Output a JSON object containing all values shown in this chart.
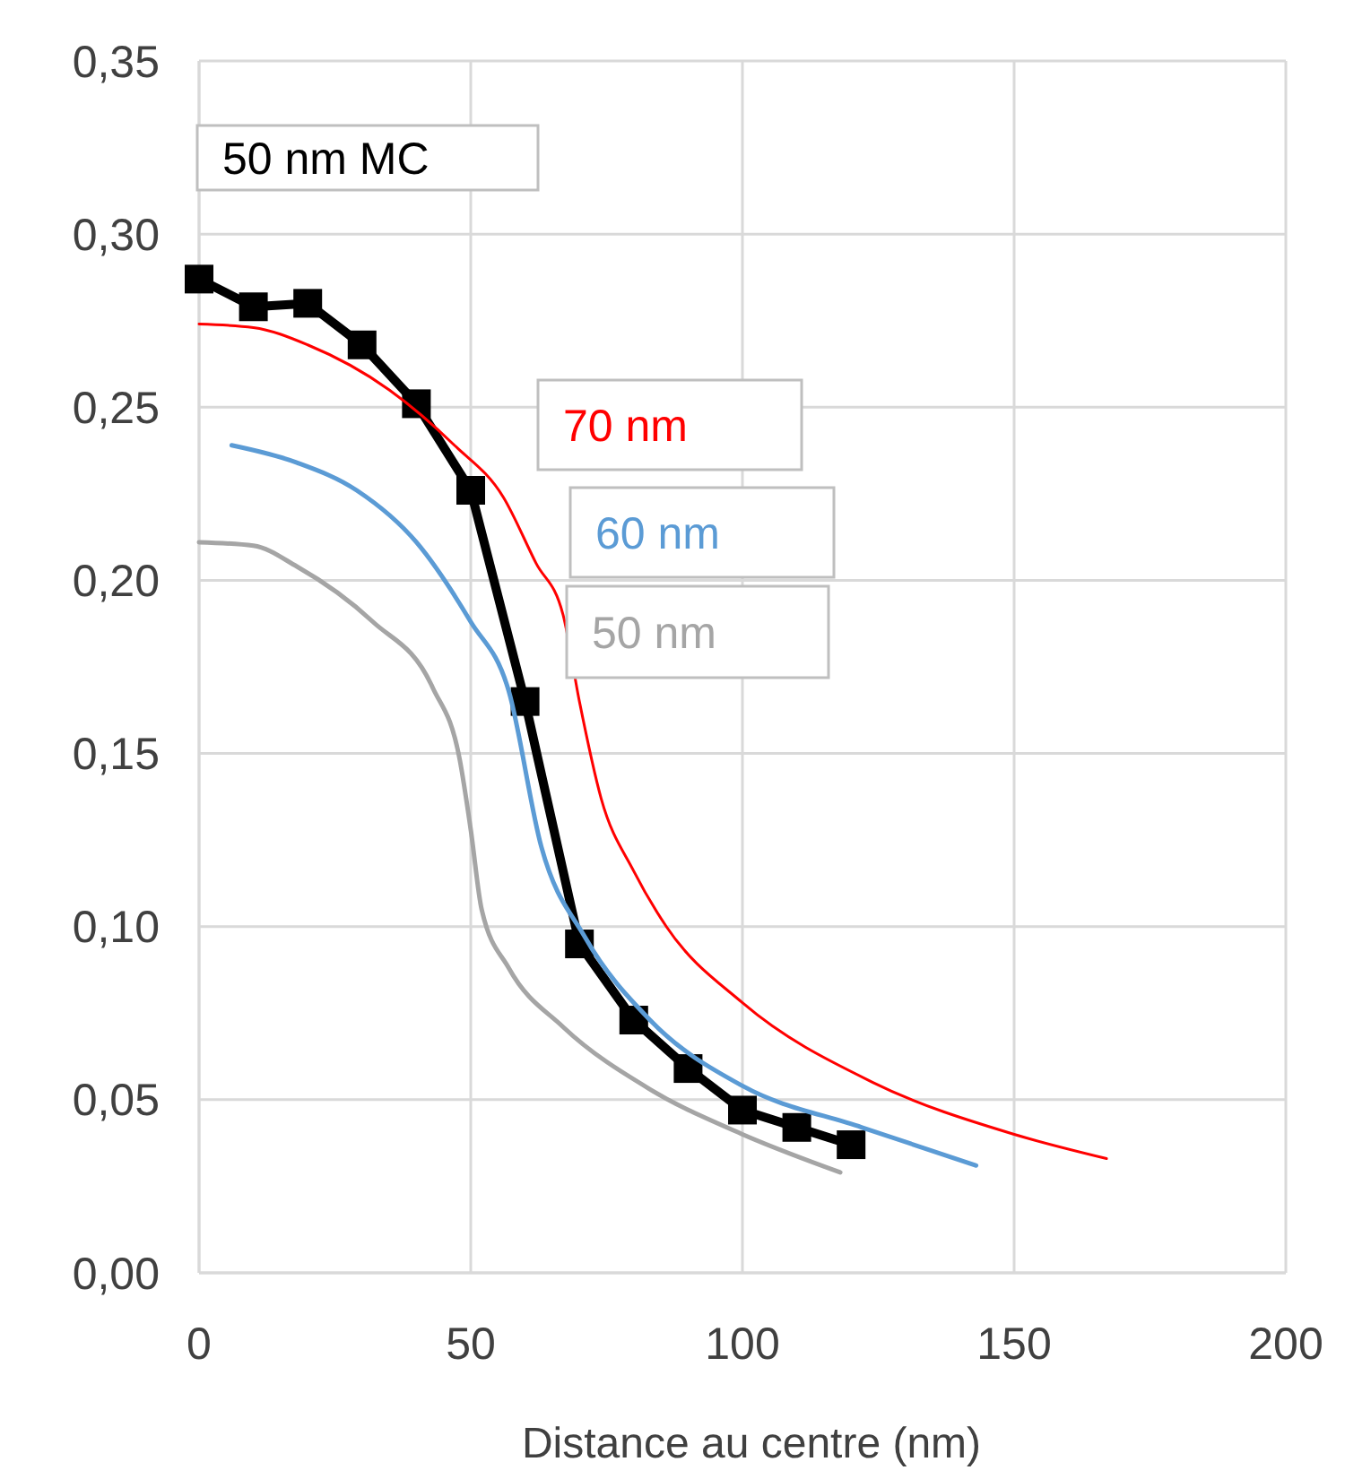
{
  "chart_data": {
    "type": "line",
    "xlabel": "Distance au centre (nm)",
    "xlim": [
      0,
      200
    ],
    "xticks": [
      0,
      50,
      100,
      150,
      200
    ],
    "ylim": [
      0,
      0.35
    ],
    "yticks": [
      {
        "value": 0,
        "label": "0,00"
      },
      {
        "value": 0.05,
        "label": "0,05"
      },
      {
        "value": 0.1,
        "label": "0,10"
      },
      {
        "value": 0.15,
        "label": "0,15"
      },
      {
        "value": 0.2,
        "label": "0,20"
      },
      {
        "value": 0.25,
        "label": "0,25"
      },
      {
        "value": 0.3,
        "label": "0,30"
      },
      {
        "value": 0.35,
        "label": "0,35"
      }
    ],
    "grid": true,
    "series": [
      {
        "name": "50 nm MC",
        "color": "#000000",
        "marker": "square",
        "x": [
          0,
          10,
          20,
          30,
          40,
          50,
          60,
          70,
          80,
          90,
          100,
          110,
          120
        ],
        "values": [
          0.287,
          0.279,
          0.28,
          0.268,
          0.251,
          0.226,
          0.165,
          0.095,
          0.073,
          0.059,
          0.047,
          0.042,
          0.037
        ]
      },
      {
        "name": "70 nm",
        "color": "#ff0000",
        "marker": "none",
        "x": [
          0,
          10,
          20,
          35,
          47,
          56,
          62,
          67,
          70,
          74,
          80,
          86,
          100,
          124,
          150,
          167
        ],
        "values": [
          0.274,
          0.273,
          0.268,
          0.255,
          0.239,
          0.224,
          0.205,
          0.19,
          0.165,
          0.137,
          0.116,
          0.1,
          0.078,
          0.055,
          0.04,
          0.033
        ]
      },
      {
        "name": "60 nm",
        "color": "#5b9bd5",
        "marker": "none",
        "x": [
          6,
          18,
          29,
          40,
          50,
          57,
          63,
          71,
          83,
          100,
          122,
          143
        ],
        "values": [
          0.239,
          0.234,
          0.226,
          0.211,
          0.188,
          0.168,
          0.123,
          0.097,
          0.073,
          0.054,
          0.042,
          0.031
        ]
      },
      {
        "name": "50 nm",
        "color": "#a5a5a5",
        "marker": "none",
        "x": [
          0,
          10,
          18,
          32,
          43,
          48,
          50,
          52,
          57,
          67,
          83,
          100,
          118
        ],
        "values": [
          0.211,
          0.21,
          0.204,
          0.188,
          0.169,
          0.148,
          0.128,
          0.105,
          0.088,
          0.071,
          0.053,
          0.04,
          0.029
        ]
      }
    ]
  }
}
